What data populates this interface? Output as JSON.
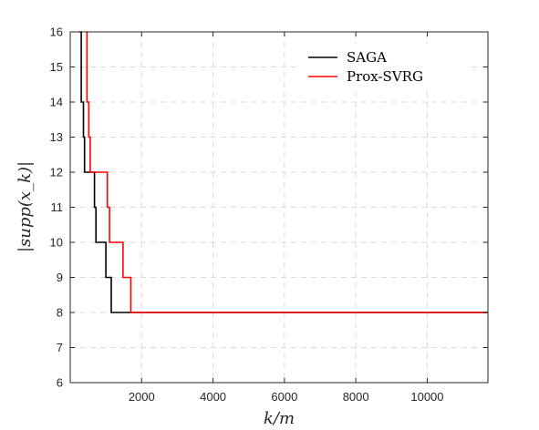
{
  "chart_data": {
    "type": "line",
    "xlabel": "k/m",
    "ylabel": "|supp(x_k)|",
    "xlim": [
      0,
      11700
    ],
    "ylim": [
      6,
      16
    ],
    "x_ticks": [
      2000,
      4000,
      6000,
      8000,
      10000
    ],
    "x_tick_labels": [
      "2000",
      "4000",
      "6000",
      "8000",
      "10000"
    ],
    "y_ticks": [
      6,
      7,
      8,
      9,
      10,
      11,
      12,
      13,
      14,
      15,
      16
    ],
    "y_tick_labels": [
      "6",
      "7",
      "8",
      "9",
      "10",
      "11",
      "12",
      "13",
      "14",
      "15",
      "16"
    ],
    "grid": true,
    "legend_position": "top-right",
    "series": [
      {
        "name": "SAGA",
        "color": "#000000",
        "step": true,
        "points": [
          [
            250,
            16
          ],
          [
            310,
            16
          ],
          [
            310,
            14
          ],
          [
            370,
            14
          ],
          [
            370,
            13
          ],
          [
            400,
            13
          ],
          [
            400,
            12
          ],
          [
            680,
            12
          ],
          [
            680,
            11
          ],
          [
            720,
            11
          ],
          [
            720,
            10
          ],
          [
            1000,
            10
          ],
          [
            1000,
            9
          ],
          [
            1150,
            9
          ],
          [
            1150,
            8
          ],
          [
            11700,
            8
          ]
        ]
      },
      {
        "name": "Prox-SVRG",
        "color": "#ff0000",
        "step": true,
        "points": [
          [
            450,
            16
          ],
          [
            470,
            16
          ],
          [
            470,
            14
          ],
          [
            520,
            14
          ],
          [
            520,
            13
          ],
          [
            560,
            13
          ],
          [
            560,
            12
          ],
          [
            1040,
            12
          ],
          [
            1040,
            11
          ],
          [
            1100,
            11
          ],
          [
            1100,
            10
          ],
          [
            1480,
            10
          ],
          [
            1480,
            9
          ],
          [
            1700,
            9
          ],
          [
            1700,
            8
          ],
          [
            11700,
            8
          ]
        ]
      }
    ]
  }
}
